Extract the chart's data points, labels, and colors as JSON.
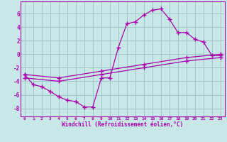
{
  "background_color": "#c8e8e8",
  "grid_color": "#a0c8c8",
  "line_color": "#aa00aa",
  "marker": "+",
  "marker_size": 4,
  "marker_lw": 1.0,
  "xlabel": "Windchill (Refroidissement éolien,°C)",
  "ylabel_ticks": [
    6,
    4,
    2,
    0,
    -2,
    -4,
    -6,
    -8
  ],
  "xtick_labels": [
    "0",
    "1",
    "2",
    "3",
    "4",
    "5",
    "6",
    "7",
    "8",
    "9",
    "10",
    "11",
    "12",
    "13",
    "14",
    "15",
    "16",
    "17",
    "18",
    "19",
    "20",
    "21",
    "22",
    "23"
  ],
  "xlim": [
    -0.5,
    23.5
  ],
  "ylim": [
    -9.2,
    7.8
  ],
  "series": [
    [
      0,
      -3.0
    ],
    [
      1,
      -4.5
    ],
    [
      2,
      -4.8
    ],
    [
      3,
      -5.5
    ],
    [
      4,
      -6.3
    ],
    [
      5,
      -6.8
    ],
    [
      6,
      -7.0
    ],
    [
      7,
      -7.8
    ],
    [
      8,
      -7.8
    ],
    [
      9,
      -3.5
    ],
    [
      10,
      -3.5
    ],
    [
      11,
      1.0
    ],
    [
      12,
      4.5
    ],
    [
      13,
      4.8
    ],
    [
      14,
      5.8
    ],
    [
      15,
      6.5
    ],
    [
      16,
      6.7
    ],
    [
      17,
      5.2
    ],
    [
      18,
      3.2
    ],
    [
      19,
      3.2
    ],
    [
      20,
      2.2
    ],
    [
      21,
      1.8
    ],
    [
      22,
      -0.2
    ],
    [
      23,
      -0.2
    ]
  ],
  "line2": [
    [
      0,
      -3.0
    ],
    [
      4,
      -3.5
    ],
    [
      9,
      -2.5
    ],
    [
      14,
      -1.5
    ],
    [
      19,
      -0.5
    ],
    [
      23,
      0.0
    ]
  ],
  "line3": [
    [
      0,
      -3.5
    ],
    [
      4,
      -4.0
    ],
    [
      9,
      -3.0
    ],
    [
      14,
      -2.0
    ],
    [
      19,
      -1.0
    ],
    [
      23,
      -0.5
    ]
  ]
}
